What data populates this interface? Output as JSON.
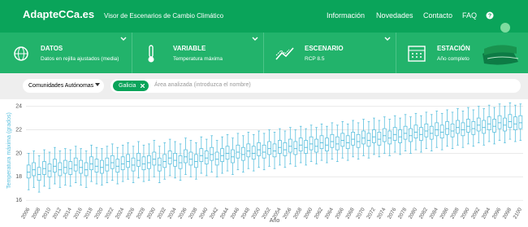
{
  "header": {
    "logo": "AdapteCCa.es",
    "subtitle": "Visor de Escenarios de Cambio Climático",
    "nav": [
      "Información",
      "Novedades",
      "Contacto",
      "FAQ"
    ]
  },
  "selectors": [
    {
      "label": "DATOS",
      "value": "Datos en rejilla ajustados (media)"
    },
    {
      "label": "VARIABLE",
      "value": "Temperatura máxima"
    },
    {
      "label": "ESCENARIO",
      "value": "RCP 8.5"
    },
    {
      "label": "ESTACIÓN",
      "value": "Año completo"
    }
  ],
  "filter": {
    "dropdown": "Comunidades Autónomas",
    "chip": "Galicia",
    "placeholder": "Área analizada (introduzca el nombre)"
  },
  "chart_data": {
    "type": "box",
    "x_label": "Año",
    "y_label": "Temperatura máxima (grados)",
    "color": "#5bc0de",
    "grid": true,
    "ylim": [
      15.6,
      24.6
    ],
    "yticks": [
      16,
      18,
      20,
      22,
      24
    ],
    "categories": [
      "2006",
      null,
      "2008",
      null,
      "2010",
      null,
      "2012",
      null,
      "2014",
      null,
      "2016",
      null,
      "2018",
      null,
      "2020",
      null,
      "2022",
      null,
      "2024",
      null,
      "2026",
      null,
      "2028",
      null,
      "2030",
      null,
      "2032",
      null,
      "2034",
      null,
      "2036",
      null,
      "2038",
      null,
      "2040",
      null,
      "2042",
      null,
      "2044",
      null,
      "2046",
      null,
      "2048",
      null,
      "2050",
      null,
      "2052",
      null,
      "2054",
      null,
      "2056",
      null,
      "2058",
      null,
      "2060",
      null,
      "2062",
      null,
      "2064",
      null,
      "2066",
      null,
      "2068",
      null,
      "2070",
      null,
      "2072",
      null,
      "2074",
      null,
      "2076",
      null,
      "2078",
      null,
      "2080",
      null,
      "2082",
      null,
      "2084",
      null,
      "2086",
      null,
      "2088",
      null,
      "2090",
      null,
      "2092",
      null,
      "2094",
      null,
      "2096",
      null,
      "2098",
      null,
      "2100"
    ],
    "min": [
      16.9,
      17.1,
      16.7,
      17.2,
      17.0,
      17.4,
      17.1,
      17.3,
      17.2,
      17.5,
      17.3,
      17.1,
      17.6,
      17.4,
      17.3,
      17.5,
      17.7,
      17.4,
      17.6,
      17.8,
      17.5,
      17.9,
      17.6,
      17.7,
      18.0,
      17.5,
      17.8,
      18.1,
      17.9,
      17.7,
      18.2,
      18.0,
      17.8,
      18.3,
      18.1,
      18.4,
      18.0,
      18.3,
      18.5,
      18.2,
      18.6,
      18.4,
      18.7,
      18.5,
      18.8,
      18.6,
      18.9,
      18.7,
      19.0,
      18.8,
      19.1,
      18.9,
      19.2,
      19.0,
      19.3,
      19.1,
      19.4,
      19.2,
      19.5,
      19.3,
      19.6,
      19.4,
      19.7,
      19.5,
      19.8,
      19.6,
      19.9,
      19.7,
      20.0,
      19.8,
      20.1,
      19.9,
      20.2,
      20.0,
      20.3,
      20.1,
      20.4,
      20.2,
      20.5,
      20.3,
      20.6,
      20.4,
      20.7,
      20.5,
      20.8,
      20.6,
      20.9,
      20.7,
      21.0,
      20.8,
      21.1,
      20.9,
      21.2,
      21.0,
      21.1
    ],
    "q1": [
      17.9,
      18.1,
      17.7,
      18.2,
      18.0,
      18.4,
      18.1,
      18.3,
      18.2,
      18.5,
      18.3,
      18.1,
      18.6,
      18.4,
      18.3,
      18.5,
      18.7,
      18.4,
      18.6,
      18.8,
      18.5,
      18.9,
      18.6,
      18.7,
      19.0,
      18.5,
      18.8,
      19.1,
      18.9,
      18.7,
      19.2,
      19.0,
      18.8,
      19.3,
      19.1,
      19.4,
      19.0,
      19.3,
      19.5,
      19.2,
      19.6,
      19.4,
      19.7,
      19.5,
      19.8,
      19.6,
      19.9,
      19.7,
      20.0,
      19.8,
      20.1,
      19.9,
      20.2,
      20.0,
      20.3,
      20.1,
      20.4,
      20.2,
      20.5,
      20.3,
      20.6,
      20.4,
      20.7,
      20.5,
      20.8,
      20.6,
      20.9,
      20.7,
      21.0,
      20.8,
      21.1,
      20.9,
      21.2,
      21.0,
      21.3,
      21.1,
      21.4,
      21.2,
      21.5,
      21.3,
      21.6,
      21.4,
      21.7,
      21.5,
      21.8,
      21.6,
      21.9,
      21.7,
      22.0,
      21.8,
      22.1,
      21.9,
      22.2,
      22.0,
      22.1
    ],
    "median": [
      18.4,
      18.6,
      18.2,
      18.7,
      18.5,
      18.9,
      18.6,
      18.8,
      18.7,
      19.0,
      18.8,
      18.6,
      19.1,
      18.9,
      18.8,
      19.0,
      19.2,
      18.9,
      19.1,
      19.3,
      19.0,
      19.4,
      19.1,
      19.2,
      19.5,
      19.0,
      19.3,
      19.6,
      19.4,
      19.2,
      19.7,
      19.5,
      19.3,
      19.8,
      19.6,
      19.9,
      19.5,
      19.8,
      20.0,
      19.7,
      20.1,
      19.9,
      20.2,
      20.0,
      20.3,
      20.1,
      20.4,
      20.2,
      20.5,
      20.3,
      20.6,
      20.4,
      20.7,
      20.5,
      20.8,
      20.6,
      20.9,
      20.7,
      21.0,
      20.8,
      21.1,
      20.9,
      21.2,
      21.0,
      21.3,
      21.1,
      21.4,
      21.2,
      21.5,
      21.3,
      21.6,
      21.4,
      21.7,
      21.5,
      21.8,
      21.6,
      21.9,
      21.7,
      22.0,
      21.8,
      22.1,
      21.9,
      22.2,
      22.0,
      22.3,
      22.1,
      22.4,
      22.2,
      22.5,
      22.3,
      22.6,
      22.4,
      22.7,
      22.5,
      22.6
    ],
    "q3": [
      19.0,
      19.2,
      18.8,
      19.3,
      19.1,
      19.5,
      19.2,
      19.4,
      19.3,
      19.6,
      19.4,
      19.2,
      19.7,
      19.5,
      19.4,
      19.6,
      19.8,
      19.5,
      19.7,
      19.9,
      19.6,
      20.0,
      19.7,
      19.8,
      20.1,
      19.6,
      19.9,
      20.2,
      20.0,
      19.8,
      20.3,
      20.1,
      19.9,
      20.4,
      20.2,
      20.5,
      20.1,
      20.4,
      20.6,
      20.3,
      20.7,
      20.5,
      20.8,
      20.6,
      20.9,
      20.7,
      21.0,
      20.8,
      21.1,
      20.9,
      21.2,
      21.0,
      21.3,
      21.1,
      21.4,
      21.2,
      21.5,
      21.3,
      21.6,
      21.4,
      21.7,
      21.5,
      21.8,
      21.6,
      21.9,
      21.7,
      22.0,
      21.8,
      22.1,
      21.9,
      22.2,
      22.0,
      22.3,
      22.1,
      22.4,
      22.2,
      22.5,
      22.3,
      22.6,
      22.4,
      22.7,
      22.5,
      22.8,
      22.6,
      22.9,
      22.7,
      23.0,
      22.8,
      23.1,
      22.9,
      23.2,
      23.0,
      23.3,
      23.1,
      23.2
    ],
    "max": [
      20.0,
      20.2,
      19.8,
      20.3,
      20.1,
      20.5,
      20.2,
      20.4,
      20.3,
      20.6,
      20.4,
      20.2,
      20.7,
      20.5,
      20.4,
      20.6,
      20.8,
      20.5,
      20.7,
      20.9,
      20.6,
      21.0,
      20.7,
      20.8,
      21.1,
      20.6,
      20.9,
      21.2,
      21.0,
      20.8,
      21.3,
      21.1,
      20.9,
      21.4,
      21.2,
      21.5,
      21.1,
      21.4,
      21.6,
      21.3,
      21.7,
      21.5,
      21.8,
      21.6,
      21.9,
      21.7,
      22.0,
      21.8,
      22.1,
      21.9,
      22.2,
      22.0,
      22.3,
      22.1,
      22.4,
      22.2,
      22.5,
      22.3,
      22.6,
      22.4,
      22.7,
      22.5,
      22.8,
      22.6,
      22.9,
      22.7,
      23.0,
      22.8,
      23.1,
      22.9,
      23.2,
      23.0,
      23.3,
      23.1,
      23.4,
      23.2,
      23.5,
      23.3,
      23.6,
      23.4,
      23.7,
      23.5,
      23.8,
      23.6,
      23.9,
      23.7,
      24.0,
      23.8,
      24.1,
      23.9,
      24.2,
      24.0,
      24.3,
      24.1,
      24.2
    ]
  }
}
